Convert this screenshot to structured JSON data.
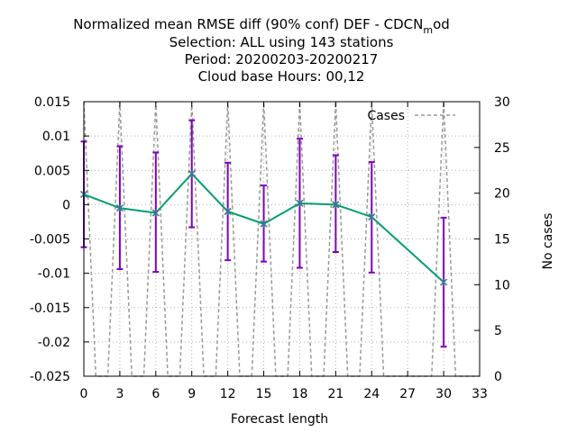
{
  "chart_data": {
    "type": "line",
    "title_lines": [
      "Normalized mean RMSE diff (90% conf) DEF - CDCN",
      "Selection: ALL using   143 stations",
      "Period: 20200203-20200217",
      "Cloud base   Hours:  00,12"
    ],
    "title_sub_m": "m",
    "title_tail": "od",
    "xlabel": "Forecast length",
    "ylabel": "",
    "y2label": "No cases",
    "xlim": [
      0,
      33
    ],
    "ylim": [
      -0.025,
      0.015
    ],
    "y2lim": [
      0,
      30
    ],
    "xticks": [
      "0",
      "3",
      "6",
      "9",
      "12",
      "15",
      "18",
      "21",
      "24",
      "27",
      "30",
      "33"
    ],
    "yticks": [
      "0.015",
      "0.01",
      "0.005",
      "0",
      "-0.005",
      "-0.01",
      "-0.015",
      "-0.02",
      "-0.025"
    ],
    "y2ticks": [
      "30",
      "25",
      "20",
      "15",
      "10",
      "5",
      "0"
    ],
    "grid": true,
    "legend_position": "top-right",
    "series": [
      {
        "kind": "mean_with_errorbars",
        "color": "#009e73",
        "errorbar_color": "#8000c0",
        "x": [
          0,
          3,
          6,
          9,
          12,
          15,
          18,
          21,
          24,
          30
        ],
        "y": [
          0.0015,
          -0.0005,
          -0.0012,
          0.0045,
          -0.001,
          -0.0028,
          0.0002,
          0.0,
          -0.0018,
          -0.0113
        ],
        "lower": [
          -0.0062,
          -0.0094,
          -0.0098,
          -0.0033,
          -0.0081,
          -0.0083,
          -0.0092,
          -0.0069,
          -0.0099,
          -0.0207
        ],
        "upper": [
          0.0092,
          0.0085,
          0.0076,
          0.0123,
          0.0061,
          0.0028,
          0.0096,
          0.0072,
          0.0062,
          -0.0019
        ]
      },
      {
        "name": "Cases",
        "kind": "cases",
        "axis": "y2",
        "color": "#999999",
        "x": [
          0,
          1,
          2,
          3,
          4,
          5,
          6,
          7,
          8,
          9,
          10,
          11,
          12,
          13,
          14,
          15,
          16,
          17,
          18,
          19,
          20,
          21,
          22,
          23,
          24,
          25,
          26,
          27,
          28,
          29,
          30,
          31,
          32,
          33
        ],
        "y": [
          30,
          0,
          0,
          30,
          0,
          0,
          30,
          0,
          0,
          30,
          0,
          0,
          30,
          0,
          0,
          30,
          0,
          0,
          30,
          0,
          0,
          30,
          0,
          0,
          30,
          0,
          0,
          0,
          0,
          0,
          30,
          0,
          0,
          0
        ]
      }
    ]
  }
}
